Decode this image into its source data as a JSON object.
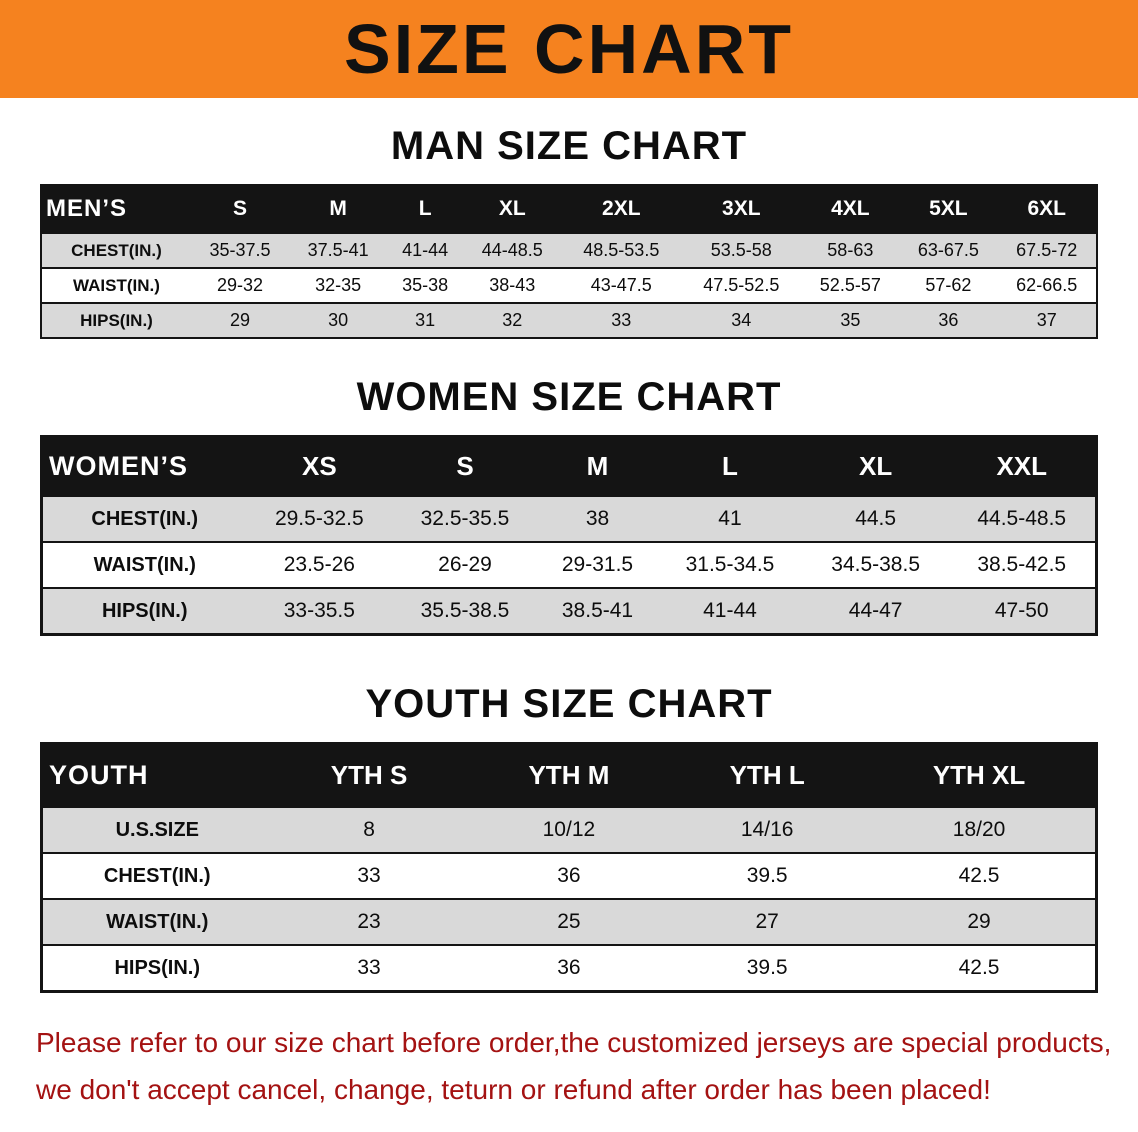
{
  "banner": {
    "title": "SIZE CHART",
    "bg_color": "#F5821F"
  },
  "sections": {
    "men": {
      "heading": "MAN SIZE CHART",
      "table": {
        "header": [
          "MEN’S",
          "S",
          "M",
          "L",
          "XL",
          "2XL",
          "3XL",
          "4XL",
          "5XL",
          "6XL"
        ],
        "rows": [
          [
            "CHEST(IN.)",
            "35-37.5",
            "37.5-41",
            "41-44",
            "44-48.5",
            "48.5-53.5",
            "53.5-58",
            "58-63",
            "63-67.5",
            "67.5-72"
          ],
          [
            "WAIST(IN.)",
            "29-32",
            "32-35",
            "35-38",
            "38-43",
            "43-47.5",
            "47.5-52.5",
            "52.5-57",
            "57-62",
            "62-66.5"
          ],
          [
            "HIPS(IN.)",
            "29",
            "30",
            "31",
            "32",
            "33",
            "34",
            "35",
            "36",
            "37"
          ]
        ]
      }
    },
    "women": {
      "heading": "WOMEN SIZE CHART",
      "table": {
        "header": [
          "WOMEN’S",
          "XS",
          "S",
          "M",
          "L",
          "XL",
          "XXL"
        ],
        "rows": [
          [
            "CHEST(IN.)",
            "29.5-32.5",
            "32.5-35.5",
            "38",
            "41",
            "44.5",
            "44.5-48.5"
          ],
          [
            "WAIST(IN.)",
            "23.5-26",
            "26-29",
            "29-31.5",
            "31.5-34.5",
            "34.5-38.5",
            "38.5-42.5"
          ],
          [
            "HIPS(IN.)",
            "33-35.5",
            "35.5-38.5",
            "38.5-41",
            "41-44",
            "44-47",
            "47-50"
          ]
        ]
      }
    },
    "youth": {
      "heading": "YOUTH SIZE CHART",
      "table": {
        "header": [
          "YOUTH",
          "YTH S",
          "YTH M",
          "YTH L",
          "YTH XL"
        ],
        "rows": [
          [
            "U.S.SIZE",
            "8",
            "10/12",
            "14/16",
            "18/20"
          ],
          [
            "CHEST(IN.)",
            "33",
            "36",
            "39.5",
            "42.5"
          ],
          [
            "WAIST(IN.)",
            "23",
            "25",
            "27",
            "29"
          ],
          [
            "HIPS(IN.)",
            "33",
            "36",
            "39.5",
            "42.5"
          ]
        ]
      }
    }
  },
  "disclaimer": {
    "line1": "Please refer to our size chart before order,the customized jerseys are special products,",
    "line2": "we don't accept cancel, change, teturn or refund after order has been placed!",
    "color": "#A41212"
  }
}
